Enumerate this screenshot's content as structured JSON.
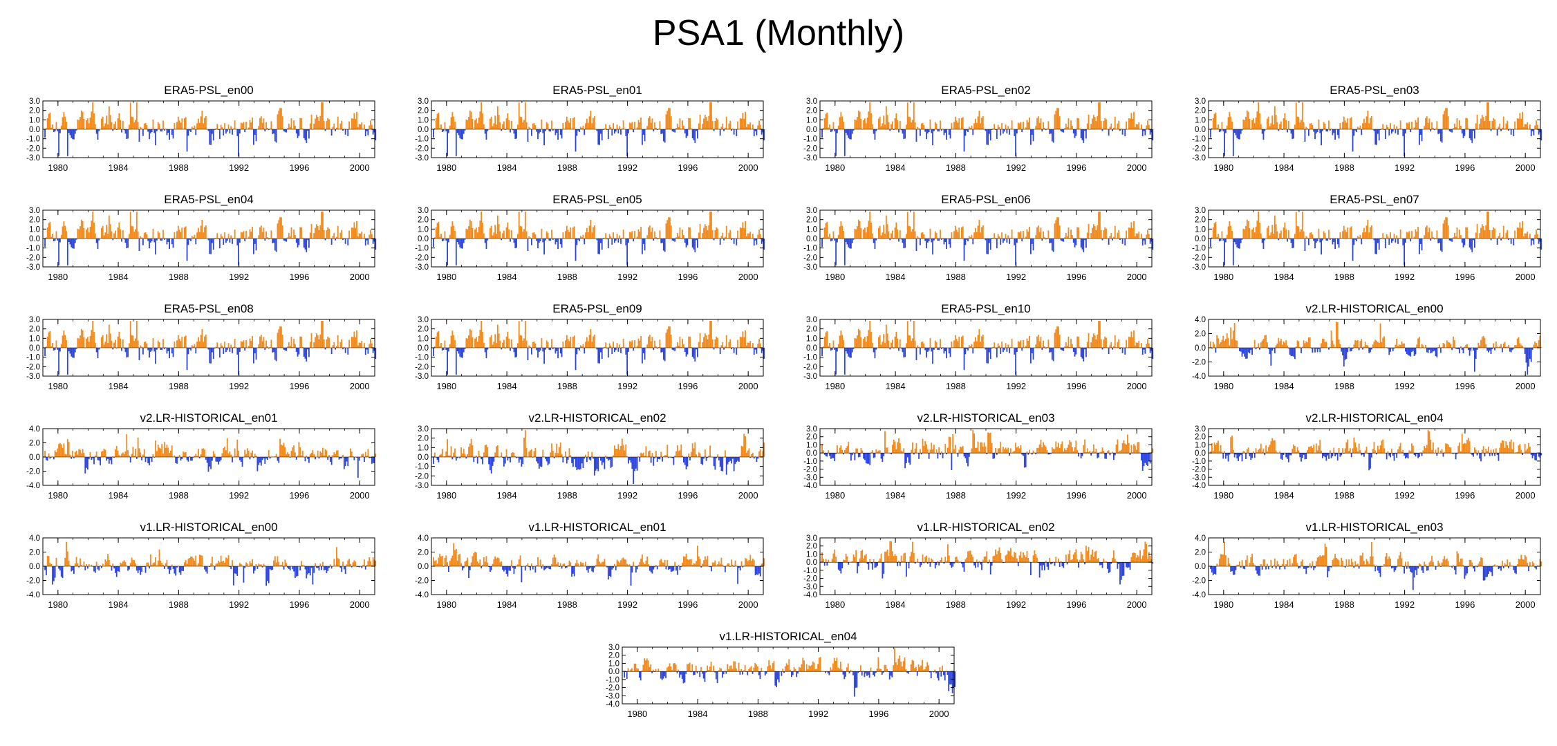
{
  "page": {
    "title": "PSA1 (Monthly)"
  },
  "colors": {
    "positive": "#f28a1c",
    "negative": "#2d46e0",
    "axis": "#000000"
  },
  "x_tick_labels": [
    "1980",
    "1984",
    "1988",
    "1992",
    "1996",
    "2000"
  ],
  "chart_data": [
    {
      "type": "bar",
      "title": "ERA5-PSL_en00",
      "seed": 11,
      "xlim": [
        1979.0,
        2001.0
      ],
      "ylim": [
        -3.0,
        3.0
      ],
      "yticks": [
        "3.0",
        "2.0",
        "1.0",
        "0.0",
        "-1.0",
        "-2.0",
        "-3.0"
      ],
      "bias": 0.55,
      "spread": 1.05,
      "xlabel": "",
      "ylabel": ""
    },
    {
      "type": "bar",
      "title": "ERA5-PSL_en01",
      "seed": 11,
      "xlim": [
        1979.0,
        2001.0
      ],
      "ylim": [
        -3.0,
        3.0
      ],
      "yticks": [
        "3.0",
        "2.0",
        "1.0",
        "0.0",
        "-1.0",
        "-2.0",
        "-3.0"
      ],
      "bias": 0.55,
      "spread": 1.05,
      "xlabel": "",
      "ylabel": ""
    },
    {
      "type": "bar",
      "title": "ERA5-PSL_en02",
      "seed": 11,
      "xlim": [
        1979.0,
        2001.0
      ],
      "ylim": [
        -3.0,
        3.0
      ],
      "yticks": [
        "3.0",
        "2.0",
        "1.0",
        "0.0",
        "-1.0",
        "-2.0",
        "-3.0"
      ],
      "bias": 0.55,
      "spread": 1.05,
      "xlabel": "",
      "ylabel": ""
    },
    {
      "type": "bar",
      "title": "ERA5-PSL_en03",
      "seed": 11,
      "xlim": [
        1979.0,
        2001.0
      ],
      "ylim": [
        -3.0,
        3.0
      ],
      "yticks": [
        "3.0",
        "2.0",
        "1.0",
        "0.0",
        "-1.0",
        "-2.0",
        "-3.0"
      ],
      "bias": 0.55,
      "spread": 1.05,
      "xlabel": "",
      "ylabel": ""
    },
    {
      "type": "bar",
      "title": "ERA5-PSL_en04",
      "seed": 11,
      "xlim": [
        1979.0,
        2001.0
      ],
      "ylim": [
        -3.0,
        3.0
      ],
      "yticks": [
        "3.0",
        "2.0",
        "1.0",
        "0.0",
        "-1.0",
        "-2.0",
        "-3.0"
      ],
      "bias": 0.55,
      "spread": 1.05,
      "xlabel": "",
      "ylabel": ""
    },
    {
      "type": "bar",
      "title": "ERA5-PSL_en05",
      "seed": 11,
      "xlim": [
        1979.0,
        2001.0
      ],
      "ylim": [
        -3.0,
        3.0
      ],
      "yticks": [
        "3.0",
        "2.0",
        "1.0",
        "0.0",
        "-1.0",
        "-2.0",
        "-3.0"
      ],
      "bias": 0.55,
      "spread": 1.05,
      "xlabel": "",
      "ylabel": ""
    },
    {
      "type": "bar",
      "title": "ERA5-PSL_en06",
      "seed": 11,
      "xlim": [
        1979.0,
        2001.0
      ],
      "ylim": [
        -3.0,
        3.0
      ],
      "yticks": [
        "3.0",
        "2.0",
        "1.0",
        "0.0",
        "-1.0",
        "-2.0",
        "-3.0"
      ],
      "bias": 0.55,
      "spread": 1.05,
      "xlabel": "",
      "ylabel": ""
    },
    {
      "type": "bar",
      "title": "ERA5-PSL_en07",
      "seed": 11,
      "xlim": [
        1979.0,
        2001.0
      ],
      "ylim": [
        -3.0,
        3.0
      ],
      "yticks": [
        "3.0",
        "2.0",
        "1.0",
        "0.0",
        "-1.0",
        "-2.0",
        "-3.0"
      ],
      "bias": 0.55,
      "spread": 1.05,
      "xlabel": "",
      "ylabel": ""
    },
    {
      "type": "bar",
      "title": "ERA5-PSL_en08",
      "seed": 11,
      "xlim": [
        1979.0,
        2001.0
      ],
      "ylim": [
        -3.0,
        3.0
      ],
      "yticks": [
        "3.0",
        "2.0",
        "1.0",
        "0.0",
        "-1.0",
        "-2.0",
        "-3.0"
      ],
      "bias": 0.55,
      "spread": 1.05,
      "xlabel": "",
      "ylabel": ""
    },
    {
      "type": "bar",
      "title": "ERA5-PSL_en09",
      "seed": 11,
      "xlim": [
        1979.0,
        2001.0
      ],
      "ylim": [
        -3.0,
        3.0
      ],
      "yticks": [
        "3.0",
        "2.0",
        "1.0",
        "0.0",
        "-1.0",
        "-2.0",
        "-3.0"
      ],
      "bias": 0.55,
      "spread": 1.05,
      "xlabel": "",
      "ylabel": ""
    },
    {
      "type": "bar",
      "title": "ERA5-PSL_en10",
      "seed": 11,
      "xlim": [
        1979.0,
        2001.0
      ],
      "ylim": [
        -3.0,
        3.0
      ],
      "yticks": [
        "3.0",
        "2.0",
        "1.0",
        "0.0",
        "-1.0",
        "-2.0",
        "-3.0"
      ],
      "bias": 0.55,
      "spread": 1.05,
      "xlabel": "",
      "ylabel": ""
    },
    {
      "type": "bar",
      "title": "v2.LR-HISTORICAL_en00",
      "seed": 23,
      "xlim": [
        1979.0,
        2001.0
      ],
      "ylim": [
        -4.0,
        4.0
      ],
      "yticks": [
        "4.0",
        "2.0",
        "0.0",
        "-2.0",
        "-4.0"
      ],
      "bias": 0.4,
      "spread": 0.95,
      "xlabel": "",
      "ylabel": ""
    },
    {
      "type": "bar",
      "title": "v2.LR-HISTORICAL_en01",
      "seed": 37,
      "xlim": [
        1979.0,
        2001.0
      ],
      "ylim": [
        -4.0,
        4.0
      ],
      "yticks": [
        "4.0",
        "2.0",
        "0.0",
        "-2.0",
        "-4.0"
      ],
      "bias": 0.45,
      "spread": 1.0,
      "xlabel": "",
      "ylabel": ""
    },
    {
      "type": "bar",
      "title": "v2.LR-HISTORICAL_en02",
      "seed": 41,
      "xlim": [
        1979.0,
        2001.0
      ],
      "ylim": [
        -3.0,
        3.0
      ],
      "yticks": [
        "3.0",
        "2.0",
        "1.0",
        "0.0",
        "-1.0",
        "-2.0",
        "-3.0"
      ],
      "bias": 0.4,
      "spread": 1.0,
      "xlabel": "",
      "ylabel": ""
    },
    {
      "type": "bar",
      "title": "v2.LR-HISTORICAL_en03",
      "seed": 53,
      "xlim": [
        1979.0,
        2001.0
      ],
      "ylim": [
        -4.0,
        3.0
      ],
      "yticks": [
        "3.0",
        "2.0",
        "1.0",
        "0.0",
        "-1.0",
        "-2.0",
        "-3.0",
        "-4.0"
      ],
      "bias": 0.5,
      "spread": 1.0,
      "xlabel": "",
      "ylabel": ""
    },
    {
      "type": "bar",
      "title": "v2.LR-HISTORICAL_en04",
      "seed": 61,
      "xlim": [
        1979.0,
        2001.0
      ],
      "ylim": [
        -4.0,
        3.0
      ],
      "yticks": [
        "3.0",
        "2.0",
        "1.0",
        "0.0",
        "-1.0",
        "-2.0",
        "-3.0",
        "-4.0"
      ],
      "bias": 0.6,
      "spread": 0.95,
      "xlabel": "",
      "ylabel": ""
    },
    {
      "type": "bar",
      "title": "v1.LR-HISTORICAL_en00",
      "seed": 71,
      "xlim": [
        1979.0,
        2001.0
      ],
      "ylim": [
        -4.0,
        4.0
      ],
      "yticks": [
        "4.0",
        "2.0",
        "0.0",
        "-2.0",
        "-4.0"
      ],
      "bias": 0.5,
      "spread": 1.0,
      "xlabel": "",
      "ylabel": ""
    },
    {
      "type": "bar",
      "title": "v1.LR-HISTORICAL_en01",
      "seed": 83,
      "xlim": [
        1979.0,
        2001.0
      ],
      "ylim": [
        -4.0,
        4.0
      ],
      "yticks": [
        "4.0",
        "2.0",
        "0.0",
        "-2.0",
        "-4.0"
      ],
      "bias": 0.5,
      "spread": 1.0,
      "xlabel": "",
      "ylabel": ""
    },
    {
      "type": "bar",
      "title": "v1.LR-HISTORICAL_en02",
      "seed": 97,
      "xlim": [
        1979.0,
        2001.0
      ],
      "ylim": [
        -4.0,
        3.0
      ],
      "yticks": [
        "3.0",
        "2.0",
        "1.0",
        "0.0",
        "-1.0",
        "-2.0",
        "-3.0",
        "-4.0"
      ],
      "bias": 0.6,
      "spread": 0.95,
      "xlabel": "",
      "ylabel": ""
    },
    {
      "type": "bar",
      "title": "v1.LR-HISTORICAL_en03",
      "seed": 101,
      "xlim": [
        1979.0,
        2001.0
      ],
      "ylim": [
        -4.0,
        4.0
      ],
      "yticks": [
        "4.0",
        "2.0",
        "0.0",
        "-2.0",
        "-4.0"
      ],
      "bias": 0.5,
      "spread": 1.0,
      "xlabel": "",
      "ylabel": ""
    },
    {
      "type": "bar",
      "title": "v1.LR-HISTORICAL_en04",
      "seed": 113,
      "xlim": [
        1979.0,
        2001.0
      ],
      "ylim": [
        -4.0,
        3.0
      ],
      "yticks": [
        "3.0",
        "2.0",
        "1.0",
        "0.0",
        "-1.0",
        "-2.0",
        "-3.0",
        "-4.0"
      ],
      "bias": 0.5,
      "spread": 1.0,
      "xlabel": "",
      "ylabel": ""
    }
  ]
}
